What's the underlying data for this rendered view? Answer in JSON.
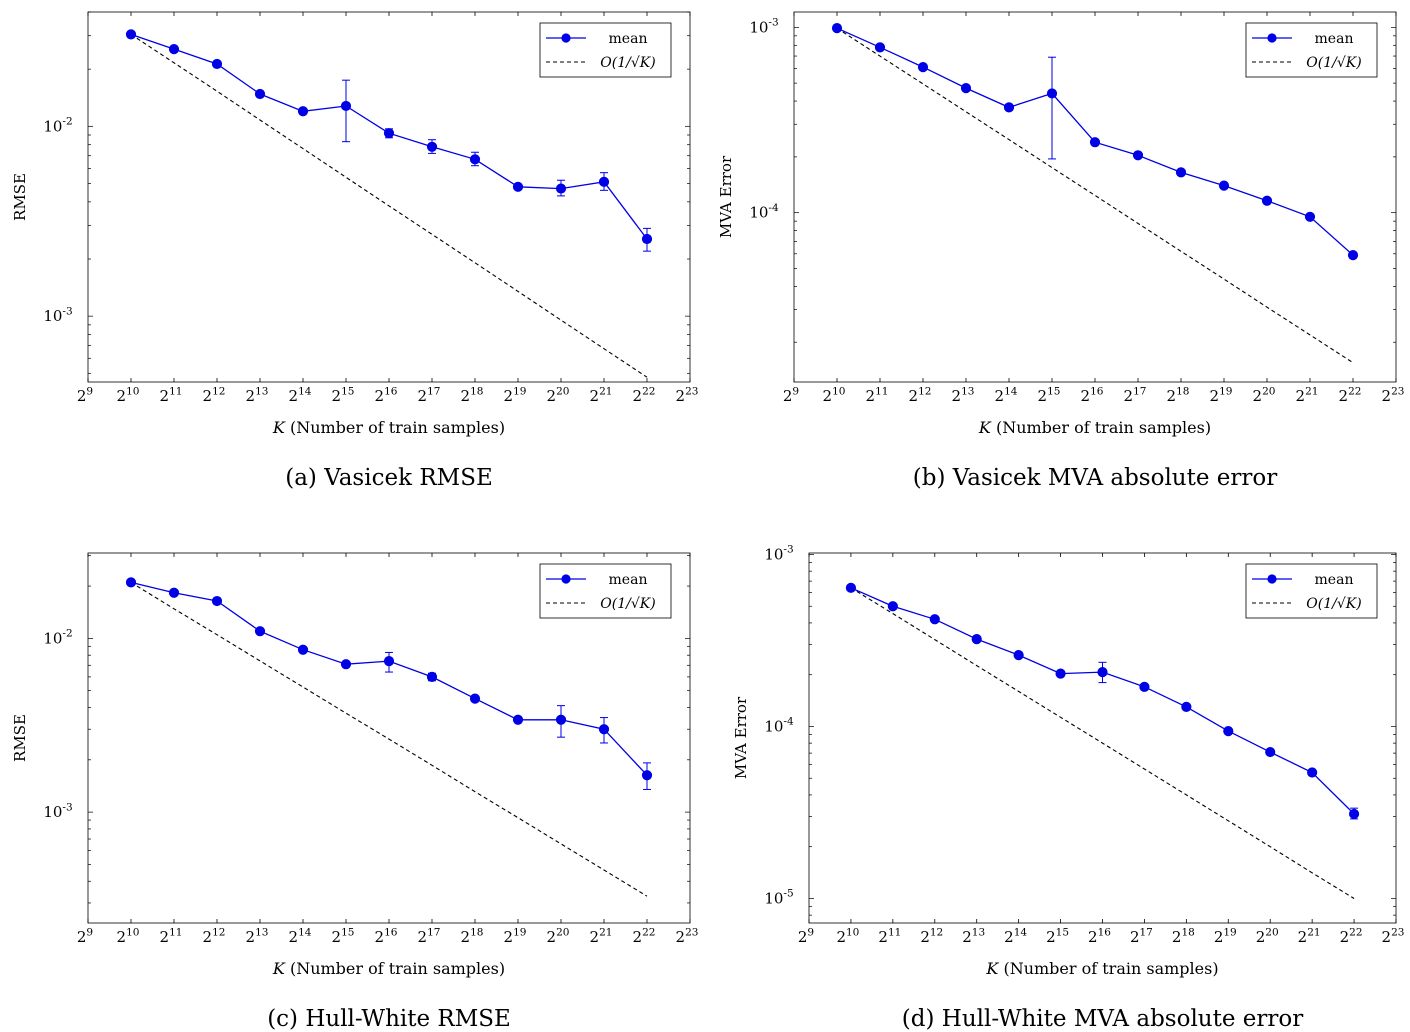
{
  "colors": {
    "mean": "#0000e6",
    "ref": "#000000",
    "frame": "#000000"
  },
  "panels": [
    {
      "caption": "(a) Vasicek RMSE",
      "chart_data": {
        "type": "line",
        "title": "",
        "xlabel": "K (Number of train samples)",
        "ylabel": "RMSE",
        "x_scale": "log2",
        "y_scale": "log10",
        "xlim_exp": [
          9,
          23
        ],
        "ylim": [
          0.00045,
          0.04
        ],
        "x_tick_exponents": [
          9,
          10,
          11,
          12,
          13,
          14,
          15,
          16,
          17,
          18,
          19,
          20,
          21,
          22,
          23
        ],
        "y_tick_exponents": [
          -3,
          -2
        ],
        "legend": {
          "position": "top-right",
          "mean_label": "mean",
          "ref_label": "O(1/√K)"
        },
        "x_exponents": [
          10,
          11,
          12,
          13,
          14,
          15,
          16,
          17,
          18,
          19,
          20,
          21,
          22
        ],
        "series": [
          {
            "name": "mean",
            "values": [
              0.0305,
              0.0255,
              0.0213,
              0.0148,
              0.012,
              0.0128,
              0.0092,
              0.0078,
              0.0067,
              0.0048,
              0.0047,
              0.0051,
              0.00255
            ],
            "err_low": [
              0.0295,
              0.025,
              0.0208,
              0.0145,
              0.0118,
              0.0083,
              0.0087,
              0.0072,
              0.0062,
              0.0047,
              0.0043,
              0.0046,
              0.0022
            ],
            "err_high": [
              0.0315,
              0.026,
              0.0218,
              0.0151,
              0.0122,
              0.0175,
              0.0097,
              0.0085,
              0.0073,
              0.0049,
              0.0052,
              0.0057,
              0.0029
            ]
          },
          {
            "name": "O(1/√K)",
            "values": [
              0.0305,
              0.0216,
              0.0153,
              0.0108,
              0.00763,
              0.00539,
              0.00381,
              0.0027,
              0.00191,
              0.00135,
              0.000953,
              0.000674,
              0.000477
            ]
          }
        ]
      }
    },
    {
      "caption": "(b) Vasicek MVA absolute error",
      "chart_data": {
        "type": "line",
        "title": "",
        "xlabel": "K (Number of train samples)",
        "ylabel": "MVA Error",
        "x_scale": "log2",
        "y_scale": "log10",
        "xlim_exp": [
          9,
          23
        ],
        "ylim": [
          1.22e-05,
          0.00121
        ],
        "x_tick_exponents": [
          9,
          10,
          11,
          12,
          13,
          14,
          15,
          16,
          17,
          18,
          19,
          20,
          21,
          22,
          23
        ],
        "y_tick_exponents": [
          -4,
          -3
        ],
        "legend": {
          "position": "top-right",
          "mean_label": "mean",
          "ref_label": "O(1/√K)"
        },
        "x_exponents": [
          10,
          11,
          12,
          13,
          14,
          15,
          16,
          17,
          18,
          19,
          20,
          21,
          22
        ],
        "series": [
          {
            "name": "mean",
            "values": [
              0.00099,
              0.00078,
              0.00061,
              0.00047,
              0.00037,
              0.00044,
              0.00024,
              0.000204,
              0.000165,
              0.00014,
              0.000116,
              9.5e-05,
              5.9e-05
            ],
            "err_low": [
              0.00097,
              0.00076,
              0.00059,
              0.00046,
              0.00036,
              0.000195,
              0.000235,
              0.0002,
              0.000162,
              0.000137,
              0.000113,
              9.3e-05,
              5.7e-05
            ],
            "err_high": [
              0.00101,
              0.0008,
              0.00063,
              0.00048,
              0.00038,
              0.00069,
              0.000245,
              0.000208,
              0.000168,
              0.000143,
              0.000119,
              9.7e-05,
              6.1e-05
            ]
          },
          {
            "name": "O(1/√K)",
            "values": [
              0.00099,
              0.0007,
              0.000495,
              0.00035,
              0.000248,
              0.000175,
              0.000124,
              8.75e-05,
              6.19e-05,
              4.38e-05,
              3.09e-05,
              2.19e-05,
              1.55e-05
            ]
          }
        ]
      }
    },
    {
      "caption": "(c) Hull-White RMSE",
      "chart_data": {
        "type": "line",
        "title": "",
        "xlabel": "K (Number of train samples)",
        "ylabel": "RMSE",
        "x_scale": "log2",
        "y_scale": "log10",
        "xlim_exp": [
          9,
          23
        ],
        "ylim": [
          0.00023,
          0.031
        ],
        "x_tick_exponents": [
          9,
          10,
          11,
          12,
          13,
          14,
          15,
          16,
          17,
          18,
          19,
          20,
          21,
          22,
          23
        ],
        "y_tick_exponents": [
          -3,
          -2
        ],
        "legend": {
          "position": "top-right",
          "mean_label": "mean",
          "ref_label": "O(1/√K)"
        },
        "x_exponents": [
          10,
          11,
          12,
          13,
          14,
          15,
          16,
          17,
          18,
          19,
          20,
          21,
          22
        ],
        "series": [
          {
            "name": "mean",
            "values": [
              0.021,
              0.0183,
              0.0164,
              0.011,
              0.0086,
              0.0071,
              0.0074,
              0.006,
              0.0045,
              0.0034,
              0.0034,
              0.003,
              0.00163
            ],
            "err_low": [
              0.0206,
              0.018,
              0.0161,
              0.0108,
              0.0084,
              0.0069,
              0.0064,
              0.0057,
              0.0044,
              0.0033,
              0.0027,
              0.0025,
              0.00135
            ],
            "err_high": [
              0.0214,
              0.0186,
              0.0167,
              0.0112,
              0.0088,
              0.0073,
              0.0083,
              0.0063,
              0.0046,
              0.0035,
              0.0041,
              0.0035,
              0.00192
            ]
          },
          {
            "name": "O(1/√K)",
            "values": [
              0.021,
              0.0148,
              0.0105,
              0.00742,
              0.00525,
              0.00371,
              0.00263,
              0.00186,
              0.00131,
              0.000928,
              0.000656,
              0.000464,
              0.000328
            ]
          }
        ]
      }
    },
    {
      "caption": "(d) Hull-White MVA absolute error",
      "chart_data": {
        "type": "line",
        "title": "",
        "xlabel": "K (Number of train samples)",
        "ylabel": "MVA Error",
        "x_scale": "log2",
        "y_scale": "log10",
        "xlim_exp": [
          9,
          23
        ],
        "ylim": [
          7.2e-06,
          0.00102
        ],
        "x_tick_exponents": [
          9,
          10,
          11,
          12,
          13,
          14,
          15,
          16,
          17,
          18,
          19,
          20,
          21,
          22,
          23
        ],
        "y_tick_exponents": [
          -5,
          -4,
          -3
        ],
        "legend": {
          "position": "top-right",
          "mean_label": "mean",
          "ref_label": "O(1/√K)"
        },
        "x_exponents": [
          10,
          11,
          12,
          13,
          14,
          15,
          16,
          17,
          18,
          19,
          20,
          21,
          22
        ],
        "series": [
          {
            "name": "mean",
            "values": [
              0.00064,
              0.0005,
              0.00042,
              0.000322,
              0.00026,
              0.000203,
              0.000207,
              0.00017,
              0.00013,
              9.4e-05,
              7.1e-05,
              5.4e-05,
              3.1e-05
            ],
            "err_low": [
              0.00063,
              0.00049,
              0.000412,
              0.000316,
              0.000255,
              0.000199,
              0.00018,
              0.000166,
              0.000127,
              9.2e-05,
              6.95e-05,
              5.28e-05,
              2.9e-05
            ],
            "err_high": [
              0.00065,
              0.00051,
              0.000428,
              0.000328,
              0.000265,
              0.000207,
              0.000236,
              0.000174,
              0.000133,
              9.6e-05,
              7.25e-05,
              5.52e-05,
              3.35e-05
            ]
          },
          {
            "name": "O(1/√K)",
            "values": [
              0.00064,
              0.000453,
              0.00032,
              0.000226,
              0.00016,
              0.000113,
              8e-05,
              5.66e-05,
              4e-05,
              2.83e-05,
              2e-05,
              1.41e-05,
              1e-05
            ]
          }
        ]
      }
    }
  ]
}
